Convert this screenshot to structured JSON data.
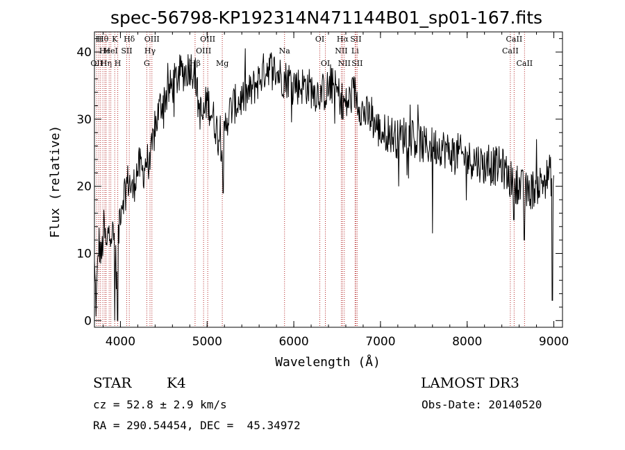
{
  "chart_data": {
    "type": "line",
    "title": "spec-56798-KP192314N471144B01_sp01-167.fits",
    "xlabel": "Wavelength (Å)",
    "ylabel": "Flux (relative)",
    "xlim": [
      3700,
      9100
    ],
    "ylim": [
      -1,
      43
    ],
    "xticks": [
      4000,
      5000,
      6000,
      7000,
      8000,
      9000
    ],
    "xtick_labels": [
      "4000",
      "5000",
      "6000",
      "7000",
      "8000",
      "9000"
    ],
    "yticks": [
      0,
      10,
      20,
      30,
      40
    ],
    "ytick_labels": [
      "0",
      "10",
      "20",
      "30",
      "40"
    ],
    "grid": false,
    "series": [
      {
        "color": "#000000",
        "anchors": [
          [
            3700,
            8
          ],
          [
            3720,
            2
          ],
          [
            3750,
            12
          ],
          [
            3780,
            9
          ],
          [
            3810,
            14
          ],
          [
            3840,
            10
          ],
          [
            3870,
            15
          ],
          [
            3900,
            13
          ],
          [
            3930,
            12
          ],
          [
            3960,
            6
          ],
          [
            3990,
            16
          ],
          [
            4020,
            18
          ],
          [
            4060,
            20
          ],
          [
            4100,
            21
          ],
          [
            4140,
            19
          ],
          [
            4180,
            22
          ],
          [
            4220,
            23
          ],
          [
            4260,
            22
          ],
          [
            4300,
            24
          ],
          [
            4340,
            23
          ],
          [
            4380,
            27
          ],
          [
            4420,
            30
          ],
          [
            4460,
            32
          ],
          [
            4500,
            33
          ],
          [
            4550,
            34
          ],
          [
            4600,
            35
          ],
          [
            4650,
            36
          ],
          [
            4700,
            37
          ],
          [
            4750,
            37
          ],
          [
            4800,
            38
          ],
          [
            4860,
            37
          ],
          [
            4900,
            32
          ],
          [
            4950,
            30
          ],
          [
            5000,
            33
          ],
          [
            5050,
            31
          ],
          [
            5100,
            29
          ],
          [
            5150,
            27
          ],
          [
            5180,
            26
          ],
          [
            5220,
            30
          ],
          [
            5300,
            32
          ],
          [
            5400,
            33
          ],
          [
            5500,
            34
          ],
          [
            5600,
            36
          ],
          [
            5700,
            38
          ],
          [
            5800,
            37
          ],
          [
            5890,
            36
          ],
          [
            5950,
            36
          ],
          [
            6050,
            35
          ],
          [
            6150,
            35
          ],
          [
            6250,
            34
          ],
          [
            6350,
            34
          ],
          [
            6450,
            35
          ],
          [
            6550,
            33
          ],
          [
            6600,
            32
          ],
          [
            6700,
            34
          ],
          [
            6800,
            31
          ],
          [
            6900,
            30
          ],
          [
            7000,
            28
          ],
          [
            7100,
            28
          ],
          [
            7200,
            27
          ],
          [
            7300,
            28
          ],
          [
            7400,
            27
          ],
          [
            7500,
            26
          ],
          [
            7600,
            26
          ],
          [
            7700,
            26
          ],
          [
            7800,
            25
          ],
          [
            7900,
            25
          ],
          [
            8000,
            24
          ],
          [
            8100,
            24
          ],
          [
            8200,
            23
          ],
          [
            8300,
            23
          ],
          [
            8400,
            23
          ],
          [
            8500,
            21
          ],
          [
            8600,
            20
          ],
          [
            8700,
            19
          ],
          [
            8800,
            20
          ],
          [
            8900,
            21
          ],
          [
            8960,
            22
          ],
          [
            9000,
            19
          ]
        ],
        "noise": 3,
        "step": 6,
        "dips": [
          [
            3934,
            0
          ],
          [
            3969,
            0
          ],
          [
            5183,
            19
          ],
          [
            6563,
            30
          ],
          [
            7210,
            20
          ],
          [
            7600,
            13
          ],
          [
            8540,
            15
          ],
          [
            8660,
            12
          ],
          [
            8985,
            3
          ]
        ]
      }
    ],
    "lines": [
      {
        "wl": 3726,
        "name": "OII",
        "row": 2,
        "color": "#b22222"
      },
      {
        "wl": 3750,
        "name": "H",
        "row": 0,
        "color": "#b22222"
      },
      {
        "wl": 3770,
        "name": "",
        "row": 0,
        "color": "#b22222"
      },
      {
        "wl": 3797,
        "name": "Hθ",
        "row": 0,
        "color": "#b22222"
      },
      {
        "wl": 3820,
        "name": "He",
        "row": 1,
        "color": "#b22222"
      },
      {
        "wl": 3835,
        "name": "Hη",
        "row": 2,
        "color": "#b22222"
      },
      {
        "wl": 3870,
        "name": "",
        "row": 0,
        "color": "#b22222"
      },
      {
        "wl": 3889,
        "name": "HeI",
        "row": 1,
        "color": "#b22222"
      },
      {
        "wl": 3934,
        "name": "K",
        "row": 0,
        "color": "#b22222"
      },
      {
        "wl": 3969,
        "name": "H",
        "row": 2,
        "color": "#b22222"
      },
      {
        "wl": 4072,
        "name": "SII",
        "row": 1,
        "color": "#b22222"
      },
      {
        "wl": 4102,
        "name": "Hδ",
        "row": 0,
        "color": "#b22222"
      },
      {
        "wl": 4304,
        "name": "G",
        "row": 2,
        "color": "#b22222"
      },
      {
        "wl": 4341,
        "name": "Hγ",
        "row": 1,
        "color": "#b22222"
      },
      {
        "wl": 4363,
        "name": "OIII",
        "row": 0,
        "color": "#b22222"
      },
      {
        "wl": 4861,
        "name": "Hβ",
        "row": 2,
        "color": "#b22222"
      },
      {
        "wl": 4959,
        "name": "OIII",
        "row": 1,
        "color": "#b22222"
      },
      {
        "wl": 5007,
        "name": "OIII",
        "row": 0,
        "color": "#b22222"
      },
      {
        "wl": 5175,
        "name": "Mg",
        "row": 2,
        "color": "#b22222"
      },
      {
        "wl": 5893,
        "name": "Na",
        "row": 1,
        "color": "#b22222"
      },
      {
        "wl": 6300,
        "name": "OI",
        "row": 0,
        "color": "#b22222"
      },
      {
        "wl": 6364,
        "name": "OI",
        "row": 2,
        "color": "#b22222"
      },
      {
        "wl": 6548,
        "name": "NII",
        "row": 1,
        "color": "#b22222"
      },
      {
        "wl": 6563,
        "name": "Hα",
        "row": 0,
        "color": "#b22222"
      },
      {
        "wl": 6583,
        "name": "NII",
        "row": 2,
        "color": "#b22222"
      },
      {
        "wl": 6707,
        "name": "Li",
        "row": 1,
        "color": "#b22222"
      },
      {
        "wl": 6716,
        "name": "SII",
        "row": 0,
        "color": "#b22222"
      },
      {
        "wl": 6731,
        "name": "SII",
        "row": 2,
        "color": "#b22222"
      },
      {
        "wl": 8498,
        "name": "CaII",
        "row": 1,
        "color": "#b22222"
      },
      {
        "wl": 8542,
        "name": "CaII",
        "row": 0,
        "color": "#b22222"
      },
      {
        "wl": 8662,
        "name": "CaII",
        "row": 2,
        "color": "#b22222"
      }
    ]
  },
  "info": {
    "class": "STAR",
    "subclass": "K4",
    "cz": "cz = 52.8 ± 2.9 km/s",
    "coords": "RA = 290.54454, DEC =  45.34972",
    "survey": "LAMOST DR3",
    "obs_date": "Obs-Date: 20140520"
  }
}
